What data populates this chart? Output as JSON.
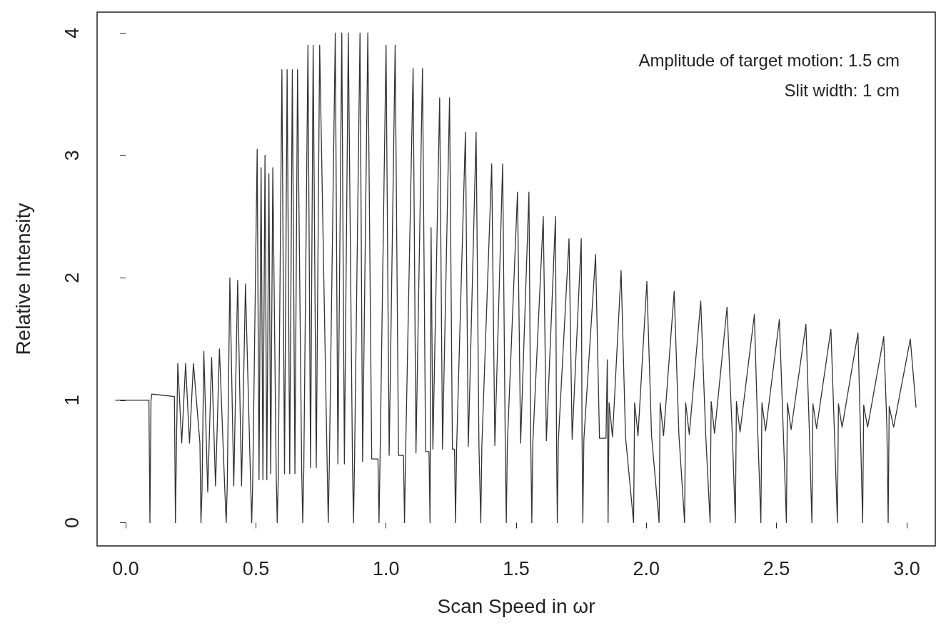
{
  "chart_data": {
    "type": "line",
    "xlabel": "Scan Speed in ωr",
    "ylabel": "Relative Intensity",
    "annotations": [
      "Amplitude of target motion: 1.5 cm",
      "Slit width: 1 cm"
    ],
    "xlim": [
      -0.11,
      3.11
    ],
    "ylim": [
      -0.19,
      4.17
    ],
    "xticks": [
      {
        "value": 0,
        "label": "0.0"
      },
      {
        "value": 0.5,
        "label": "0.5"
      },
      {
        "value": 1,
        "label": "1.0"
      },
      {
        "value": 1.5,
        "label": "1.5"
      },
      {
        "value": 2,
        "label": "2.0"
      },
      {
        "value": 2.5,
        "label": "2.5"
      },
      {
        "value": 3,
        "label": "3.0"
      }
    ],
    "yticks": [
      0,
      1,
      2,
      3,
      4
    ],
    "grid": false,
    "marker": "none",
    "line_style": "solid",
    "series": [
      {
        "color": "#333333",
        "x": [
          -0.04,
          0.089,
          0.093,
          0.097,
          0.1,
          0.187,
          0.191,
          0.195,
          0.2,
          0.215,
          0.23,
          0.245,
          0.26,
          0.285,
          0.289,
          0.293,
          0.3,
          0.315,
          0.33,
          0.345,
          0.36,
          0.38,
          0.386,
          0.39,
          0.4,
          0.415,
          0.43,
          0.445,
          0.46,
          0.48,
          0.484,
          0.488,
          0.505,
          0.512,
          0.52,
          0.527,
          0.535,
          0.542,
          0.55,
          0.557,
          0.565,
          0.578,
          0.582,
          0.586,
          0.6,
          0.61,
          0.62,
          0.63,
          0.64,
          0.65,
          0.66,
          0.676,
          0.68,
          0.684,
          0.7,
          0.71,
          0.72,
          0.732,
          0.745,
          0.774,
          0.778,
          0.782,
          0.805,
          0.815,
          0.83,
          0.84,
          0.855,
          0.871,
          0.875,
          0.879,
          0.9,
          0.91,
          0.93,
          0.945,
          0.969,
          0.973,
          0.977,
          1.0,
          1.012,
          1.035,
          1.048,
          1.067,
          1.071,
          1.075,
          1.104,
          1.115,
          1.14,
          1.152,
          1.165,
          1.169,
          1.173,
          1.18,
          1.206,
          1.217,
          1.244,
          1.255,
          1.263,
          1.267,
          1.271,
          1.305,
          1.316,
          1.346,
          1.357,
          1.364,
          1.368,
          1.406,
          1.418,
          1.448,
          1.458,
          1.462,
          1.466,
          1.505,
          1.517,
          1.549,
          1.556,
          1.56,
          1.564,
          1.604,
          1.616,
          1.651,
          1.655,
          1.658,
          1.662,
          1.703,
          1.715,
          1.75,
          1.753,
          1.756,
          1.76,
          1.805,
          1.82,
          1.845,
          1.85,
          1.853,
          1.857,
          1.87,
          1.903,
          1.92,
          1.951,
          1.955,
          1.968,
          2.002,
          2.02,
          2.049,
          2.053,
          2.066,
          2.107,
          2.125,
          2.147,
          2.151,
          2.165,
          2.209,
          2.228,
          2.245,
          2.249,
          2.262,
          2.31,
          2.33,
          2.342,
          2.346,
          2.36,
          2.415,
          2.428,
          2.44,
          2.444,
          2.458,
          2.511,
          2.526,
          2.538,
          2.542,
          2.556,
          2.613,
          2.626,
          2.636,
          2.64,
          2.654,
          2.709,
          2.722,
          2.734,
          2.738,
          2.752,
          2.813,
          2.822,
          2.831,
          2.835,
          2.85,
          2.912,
          2.924,
          2.929,
          2.933,
          2.95,
          3.014,
          3.036
        ],
        "values": [
          1,
          1,
          0,
          1,
          1.05,
          1.03,
          0,
          0.65,
          1.3,
          0.65,
          1.3,
          0.65,
          1.3,
          0.65,
          0,
          0.25,
          1.4,
          0.25,
          1.35,
          0.3,
          1.42,
          0.3,
          0,
          0.3,
          2.0,
          0.3,
          1.98,
          0.3,
          1.95,
          0.3,
          0,
          0.35,
          3.05,
          0.35,
          2.9,
          0.35,
          3.0,
          0.35,
          2.85,
          0.4,
          2.9,
          0.4,
          0,
          0.38,
          3.7,
          0.4,
          3.7,
          0.4,
          3.7,
          0.4,
          3.7,
          0.42,
          0,
          0.42,
          3.9,
          0.45,
          3.9,
          0.45,
          3.9,
          0.45,
          0,
          0.45,
          4.0,
          0.48,
          4.0,
          0.48,
          4.0,
          0.5,
          0,
          0.5,
          4.0,
          0.5,
          4.0,
          0.52,
          0.52,
          0,
          0.52,
          3.9,
          0.55,
          3.9,
          0.55,
          0.55,
          0,
          0.55,
          3.71,
          0.57,
          3.71,
          0.58,
          0.58,
          0,
          2.41,
          0.6,
          3.47,
          0.6,
          3.47,
          0.6,
          0.6,
          0,
          0.6,
          3.19,
          0.62,
          3.19,
          0.62,
          0,
          0.62,
          2.93,
          0.63,
          2.93,
          0.64,
          0,
          0.64,
          2.7,
          0.65,
          2.7,
          0.65,
          0,
          0.66,
          2.5,
          0.67,
          2.5,
          0.67,
          0,
          0.67,
          2.32,
          0.68,
          2.32,
          0.68,
          0,
          0.68,
          2.19,
          0.69,
          0.69,
          1.33,
          0,
          0.98,
          0.7,
          2.06,
          0.7,
          0,
          0.98,
          0.71,
          1.97,
          0.71,
          0,
          0.98,
          0.71,
          1.89,
          0.72,
          0,
          0.98,
          0.72,
          1.81,
          0.72,
          0,
          0.99,
          0.73,
          1.76,
          0.73,
          0,
          0.99,
          0.74,
          1.7,
          0.74,
          0,
          0.98,
          0.75,
          1.66,
          0.75,
          0,
          0.98,
          0.76,
          1.62,
          0.76,
          0,
          0.97,
          0.77,
          1.58,
          0.77,
          0,
          0.97,
          0.78,
          1.55,
          0.78,
          0,
          0.96,
          0.78,
          1.52,
          0.79,
          0,
          0.95,
          0.78,
          1.5,
          0.94
        ]
      }
    ]
  }
}
